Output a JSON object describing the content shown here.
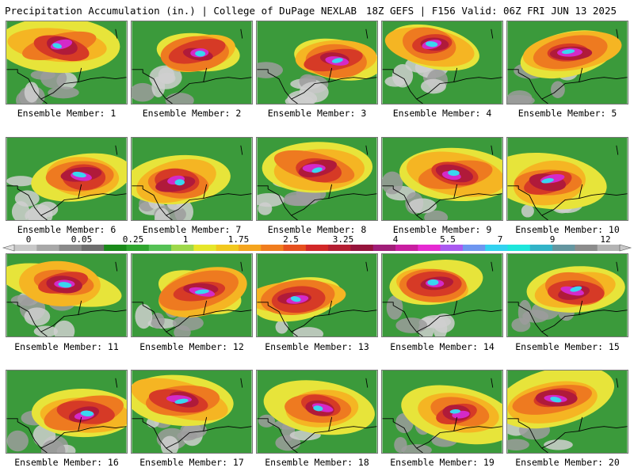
{
  "header": {
    "title_left": "Precipitation Accumulation (in.) | College of DuPage NEXLAB",
    "title_right": "18Z GEFS | F156 Valid: 06Z FRI JUN 13 2025"
  },
  "colorbar": {
    "tick_labels": [
      "0",
      "0.05",
      "0.25",
      "1",
      "1.75",
      "2.5",
      "3.25",
      "4",
      "5.5",
      "7",
      "9",
      "12"
    ],
    "colors": [
      "#c8c8c8",
      "#a8a8a8",
      "#8a8a8a",
      "#6e6e6e",
      "#1a8a1a",
      "#2fa52f",
      "#55c155",
      "#9ed84a",
      "#e6e62a",
      "#f2c81e",
      "#f5a51e",
      "#f07d1e",
      "#e6501e",
      "#d22828",
      "#b41e32",
      "#96143c",
      "#a01e78",
      "#c81ea0",
      "#e62ad2",
      "#aa5af0",
      "#6e96f0",
      "#32d2f0",
      "#1ee6dc",
      "#32b4c8",
      "#6496a0",
      "#8c8c8c",
      "#b4b4b4"
    ]
  },
  "members": [
    {
      "label": "Ensemble Member: 1"
    },
    {
      "label": "Ensemble Member: 2"
    },
    {
      "label": "Ensemble Member: 3"
    },
    {
      "label": "Ensemble Member: 4"
    },
    {
      "label": "Ensemble Member: 5"
    },
    {
      "label": "Ensemble Member: 6"
    },
    {
      "label": "Ensemble Member: 7"
    },
    {
      "label": "Ensemble Member: 8"
    },
    {
      "label": "Ensemble Member: 9"
    },
    {
      "label": "Ensemble Member: 10"
    },
    {
      "label": "Ensemble Member: 11"
    },
    {
      "label": "Ensemble Member: 12"
    },
    {
      "label": "Ensemble Member: 13"
    },
    {
      "label": "Ensemble Member: 14"
    },
    {
      "label": "Ensemble Member: 15"
    },
    {
      "label": "Ensemble Member: 16"
    },
    {
      "label": "Ensemble Member: 17"
    },
    {
      "label": "Ensemble Member: 18"
    },
    {
      "label": "Ensemble Member: 19"
    },
    {
      "label": "Ensemble Member: 20"
    }
  ]
}
